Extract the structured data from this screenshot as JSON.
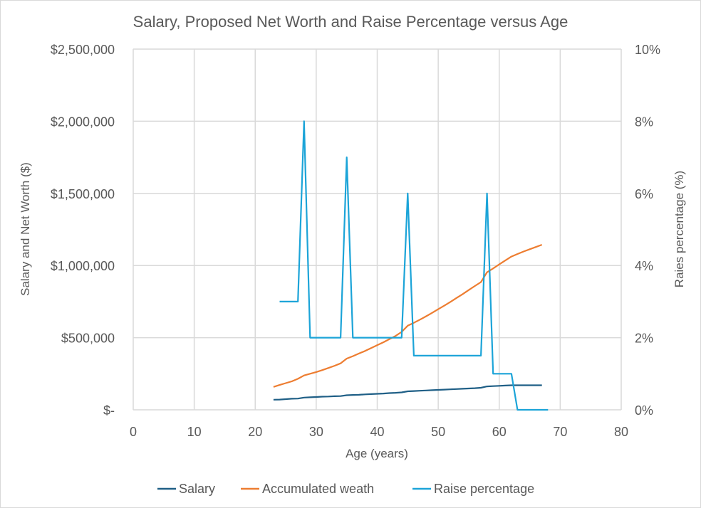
{
  "chart_data": {
    "type": "line",
    "title": "Salary, Proposed Net Worth and Raise Percentage versus Age",
    "xlabel": "Age (years)",
    "ylabel": "Salary and Net Worth ($)",
    "y2label": "Raies percentage (%)",
    "xlim": [
      0,
      80
    ],
    "ylim": [
      0,
      2500000
    ],
    "y2lim": [
      0,
      10
    ],
    "x_ticks": [
      "0",
      "10",
      "20",
      "30",
      "40",
      "50",
      "60",
      "70",
      "80"
    ],
    "y_ticks": [
      "$-",
      "$500,000",
      "$1,000,000",
      "$1,500,000",
      "$2,000,000",
      "$2,500,000"
    ],
    "y2_ticks": [
      "0%",
      "2%",
      "4%",
      "6%",
      "8%",
      "10%"
    ],
    "grid": true,
    "legend_position": "bottom",
    "series": [
      {
        "name": "Salary",
        "axis": "left",
        "color": "#1f5f86",
        "x": [
          23,
          24,
          25,
          26,
          27,
          28,
          29,
          30,
          31,
          32,
          33,
          34,
          35,
          36,
          37,
          38,
          39,
          40,
          41,
          42,
          43,
          44,
          45,
          46,
          47,
          48,
          49,
          50,
          51,
          52,
          53,
          54,
          55,
          56,
          57,
          58,
          59,
          60,
          61,
          62,
          63,
          64,
          65,
          66,
          67
        ],
        "values": [
          70000,
          71000,
          74000,
          77000,
          78000,
          85000,
          87000,
          89000,
          91000,
          92000,
          94000,
          95000,
          101000,
          103000,
          104000,
          107000,
          109000,
          111000,
          113000,
          116000,
          118000,
          121000,
          128000,
          130000,
          132000,
          134000,
          136000,
          138000,
          140000,
          142000,
          144000,
          146000,
          148000,
          150000,
          153000,
          162000,
          164000,
          166000,
          168000,
          170000,
          170000,
          170000,
          170000,
          170000,
          170000
        ]
      },
      {
        "name": "Accumulated weath",
        "axis": "left",
        "color": "#ed7d31",
        "x": [
          23,
          24,
          25,
          26,
          27,
          28,
          29,
          30,
          31,
          32,
          33,
          34,
          35,
          36,
          37,
          38,
          39,
          40,
          41,
          42,
          43,
          44,
          45,
          46,
          47,
          48,
          49,
          50,
          51,
          52,
          53,
          54,
          55,
          56,
          57,
          58,
          59,
          60,
          61,
          62,
          63,
          64,
          65,
          66,
          67
        ],
        "values": [
          159000,
          172000,
          185000,
          197000,
          215000,
          238000,
          250000,
          262000,
          275000,
          290000,
          305000,
          322000,
          355000,
          372000,
          390000,
          408000,
          428000,
          448000,
          468000,
          490000,
          512000,
          540000,
          583000,
          603000,
          625000,
          648000,
          672000,
          697000,
          722000,
          748000,
          775000,
          802000,
          830000,
          858000,
          885000,
          953000,
          980000,
          1008000,
          1035000,
          1062000,
          1080000,
          1097000,
          1113000,
          1128000,
          1144000
        ]
      },
      {
        "name": "Raise percentage",
        "axis": "right",
        "color": "#1ca4d8",
        "x": [
          24,
          25,
          26,
          27,
          28,
          29,
          30,
          31,
          32,
          33,
          34,
          35,
          36,
          37,
          38,
          39,
          40,
          41,
          42,
          43,
          44,
          45,
          46,
          47,
          48,
          49,
          50,
          51,
          52,
          53,
          54,
          55,
          56,
          57,
          58,
          59,
          60,
          61,
          62,
          63,
          64,
          65,
          66,
          67,
          68
        ],
        "values": [
          3,
          3,
          3,
          3,
          8,
          2,
          2,
          2,
          2,
          2,
          2,
          7,
          2,
          2,
          2,
          2,
          2,
          2,
          2,
          2,
          2,
          6,
          1.5,
          1.5,
          1.5,
          1.5,
          1.5,
          1.5,
          1.5,
          1.5,
          1.5,
          1.5,
          1.5,
          1.5,
          6,
          1,
          1,
          1,
          1,
          0,
          0,
          0,
          0,
          0,
          0
        ]
      }
    ]
  }
}
